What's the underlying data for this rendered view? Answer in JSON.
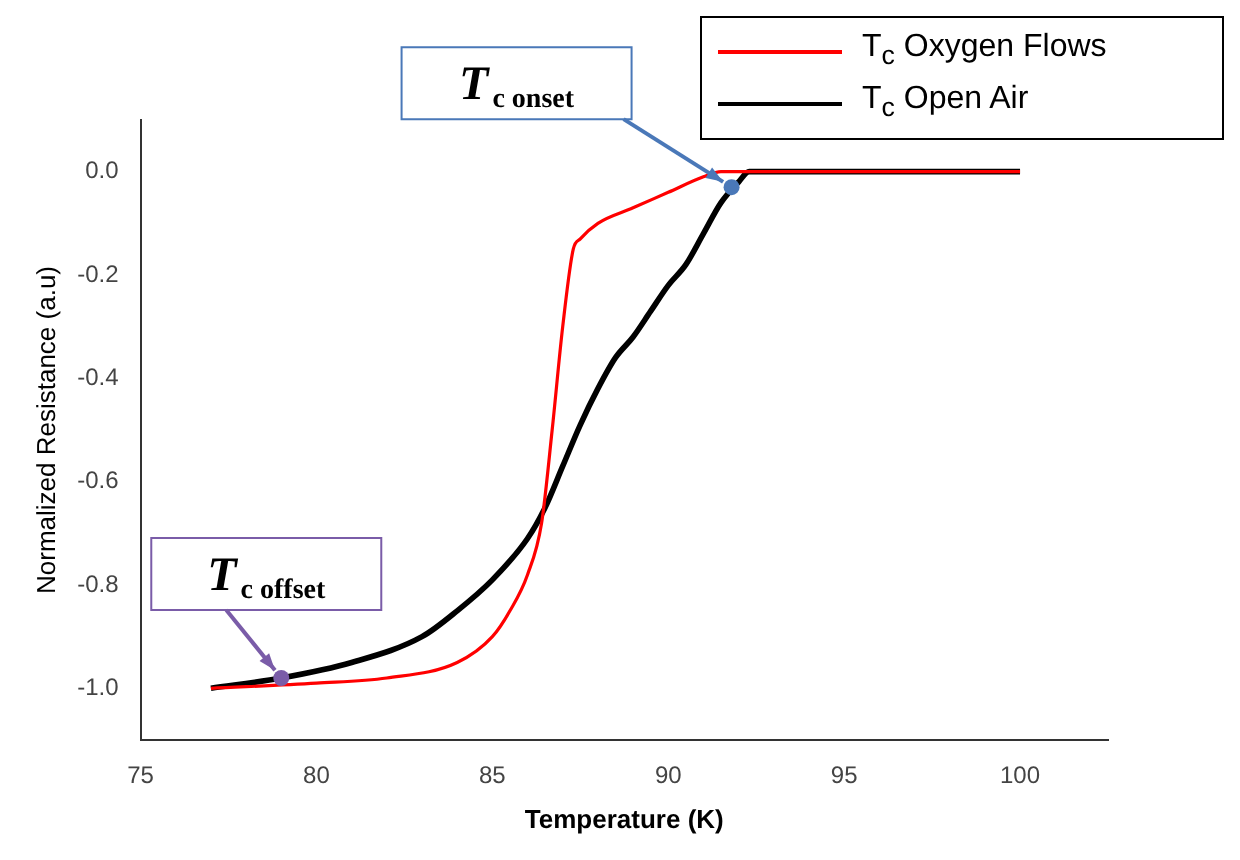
{
  "chart_data": {
    "type": "line",
    "xlabel": "Temperature (K)",
    "ylabel": "Normalized Resistance (a.u)",
    "xlim": [
      75,
      102.5
    ],
    "xticks": [
      75,
      80,
      85,
      90,
      95,
      100
    ],
    "ylim": [
      -1.1,
      0.1
    ],
    "yticks": [
      {
        "value": -1,
        "label": "-1.0"
      },
      {
        "value": -0.8,
        "label": "-0.8"
      },
      {
        "value": -0.6,
        "label": "-0.6"
      },
      {
        "value": -0.4,
        "label": "-0.4"
      },
      {
        "value": -0.2,
        "label": "-0.2"
      },
      {
        "value": 0,
        "label": "0.0"
      }
    ],
    "legend": "top right",
    "grid": false,
    "marker": "none",
    "line_style": "solid",
    "annotations": [
      {
        "text": "T$_{c onset}$",
        "x": 91.8,
        "y": -0.03
      },
      {
        "text": "T$_{c offset}$",
        "x": 79,
        "y": -0.98
      }
    ],
    "series": [
      {
        "name": "T$_{c}$ Oxygen Flows",
        "color": "#ff0000",
        "x": [
          77,
          80,
          82,
          84,
          85,
          85.5,
          86,
          86.4,
          86.7,
          87,
          87.3,
          87.5,
          88,
          89,
          90,
          91,
          91.5,
          100
        ],
        "values": [
          -1.0,
          -0.99,
          -0.98,
          -0.95,
          -0.9,
          -0.85,
          -0.78,
          -0.68,
          -0.5,
          -0.3,
          -0.15,
          -0.13,
          -0.1,
          -0.07,
          -0.04,
          -0.01,
          0,
          0
        ]
      },
      {
        "name": "T$_{c}$ Open Air",
        "color": "#000000",
        "x": [
          77,
          79,
          81,
          83,
          84,
          85,
          86,
          86.5,
          87,
          87.5,
          88,
          88.5,
          89,
          89.5,
          90,
          90.5,
          91,
          91.5,
          92,
          92.3,
          100
        ],
        "values": [
          -1.0,
          -0.98,
          -0.95,
          -0.9,
          -0.85,
          -0.79,
          -0.71,
          -0.65,
          -0.57,
          -0.49,
          -0.42,
          -0.36,
          -0.32,
          -0.27,
          -0.22,
          -0.18,
          -0.12,
          -0.06,
          -0.02,
          0,
          0
        ]
      }
    ]
  }
}
